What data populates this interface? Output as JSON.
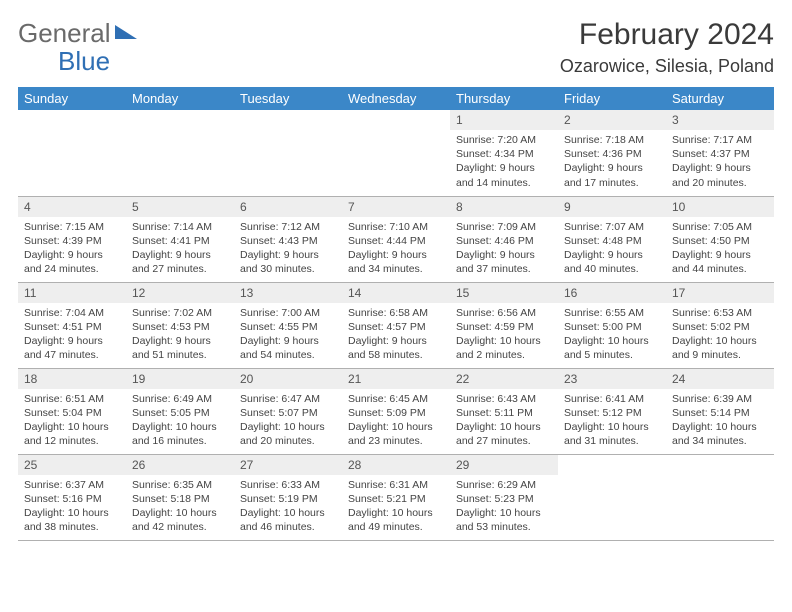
{
  "brand": {
    "word1": "General",
    "word2": "Blue"
  },
  "title": {
    "month": "February 2024",
    "location": "Ozarowice, Silesia, Poland"
  },
  "colors": {
    "header_bg": "#3b87c8",
    "header_text": "#ffffff",
    "daynum_bg": "#eeeeee",
    "border": "#b0b0b0",
    "brand_gray": "#6a6a6a",
    "brand_blue": "#2f6fb4"
  },
  "weekdays": [
    "Sunday",
    "Monday",
    "Tuesday",
    "Wednesday",
    "Thursday",
    "Friday",
    "Saturday"
  ],
  "calendar": {
    "cols": 7,
    "rows": 5,
    "first_weekday_index": 4,
    "days": [
      {
        "n": 1,
        "sr": "7:20 AM",
        "ss": "4:34 PM",
        "dl": "9 hours and 14 minutes."
      },
      {
        "n": 2,
        "sr": "7:18 AM",
        "ss": "4:36 PM",
        "dl": "9 hours and 17 minutes."
      },
      {
        "n": 3,
        "sr": "7:17 AM",
        "ss": "4:37 PM",
        "dl": "9 hours and 20 minutes."
      },
      {
        "n": 4,
        "sr": "7:15 AM",
        "ss": "4:39 PM",
        "dl": "9 hours and 24 minutes."
      },
      {
        "n": 5,
        "sr": "7:14 AM",
        "ss": "4:41 PM",
        "dl": "9 hours and 27 minutes."
      },
      {
        "n": 6,
        "sr": "7:12 AM",
        "ss": "4:43 PM",
        "dl": "9 hours and 30 minutes."
      },
      {
        "n": 7,
        "sr": "7:10 AM",
        "ss": "4:44 PM",
        "dl": "9 hours and 34 minutes."
      },
      {
        "n": 8,
        "sr": "7:09 AM",
        "ss": "4:46 PM",
        "dl": "9 hours and 37 minutes."
      },
      {
        "n": 9,
        "sr": "7:07 AM",
        "ss": "4:48 PM",
        "dl": "9 hours and 40 minutes."
      },
      {
        "n": 10,
        "sr": "7:05 AM",
        "ss": "4:50 PM",
        "dl": "9 hours and 44 minutes."
      },
      {
        "n": 11,
        "sr": "7:04 AM",
        "ss": "4:51 PM",
        "dl": "9 hours and 47 minutes."
      },
      {
        "n": 12,
        "sr": "7:02 AM",
        "ss": "4:53 PM",
        "dl": "9 hours and 51 minutes."
      },
      {
        "n": 13,
        "sr": "7:00 AM",
        "ss": "4:55 PM",
        "dl": "9 hours and 54 minutes."
      },
      {
        "n": 14,
        "sr": "6:58 AM",
        "ss": "4:57 PM",
        "dl": "9 hours and 58 minutes."
      },
      {
        "n": 15,
        "sr": "6:56 AM",
        "ss": "4:59 PM",
        "dl": "10 hours and 2 minutes."
      },
      {
        "n": 16,
        "sr": "6:55 AM",
        "ss": "5:00 PM",
        "dl": "10 hours and 5 minutes."
      },
      {
        "n": 17,
        "sr": "6:53 AM",
        "ss": "5:02 PM",
        "dl": "10 hours and 9 minutes."
      },
      {
        "n": 18,
        "sr": "6:51 AM",
        "ss": "5:04 PM",
        "dl": "10 hours and 12 minutes."
      },
      {
        "n": 19,
        "sr": "6:49 AM",
        "ss": "5:05 PM",
        "dl": "10 hours and 16 minutes."
      },
      {
        "n": 20,
        "sr": "6:47 AM",
        "ss": "5:07 PM",
        "dl": "10 hours and 20 minutes."
      },
      {
        "n": 21,
        "sr": "6:45 AM",
        "ss": "5:09 PM",
        "dl": "10 hours and 23 minutes."
      },
      {
        "n": 22,
        "sr": "6:43 AM",
        "ss": "5:11 PM",
        "dl": "10 hours and 27 minutes."
      },
      {
        "n": 23,
        "sr": "6:41 AM",
        "ss": "5:12 PM",
        "dl": "10 hours and 31 minutes."
      },
      {
        "n": 24,
        "sr": "6:39 AM",
        "ss": "5:14 PM",
        "dl": "10 hours and 34 minutes."
      },
      {
        "n": 25,
        "sr": "6:37 AM",
        "ss": "5:16 PM",
        "dl": "10 hours and 38 minutes."
      },
      {
        "n": 26,
        "sr": "6:35 AM",
        "ss": "5:18 PM",
        "dl": "10 hours and 42 minutes."
      },
      {
        "n": 27,
        "sr": "6:33 AM",
        "ss": "5:19 PM",
        "dl": "10 hours and 46 minutes."
      },
      {
        "n": 28,
        "sr": "6:31 AM",
        "ss": "5:21 PM",
        "dl": "10 hours and 49 minutes."
      },
      {
        "n": 29,
        "sr": "6:29 AM",
        "ss": "5:23 PM",
        "dl": "10 hours and 53 minutes."
      }
    ]
  },
  "labels": {
    "sunrise": "Sunrise: ",
    "sunset": "Sunset: ",
    "daylight": "Daylight: "
  }
}
